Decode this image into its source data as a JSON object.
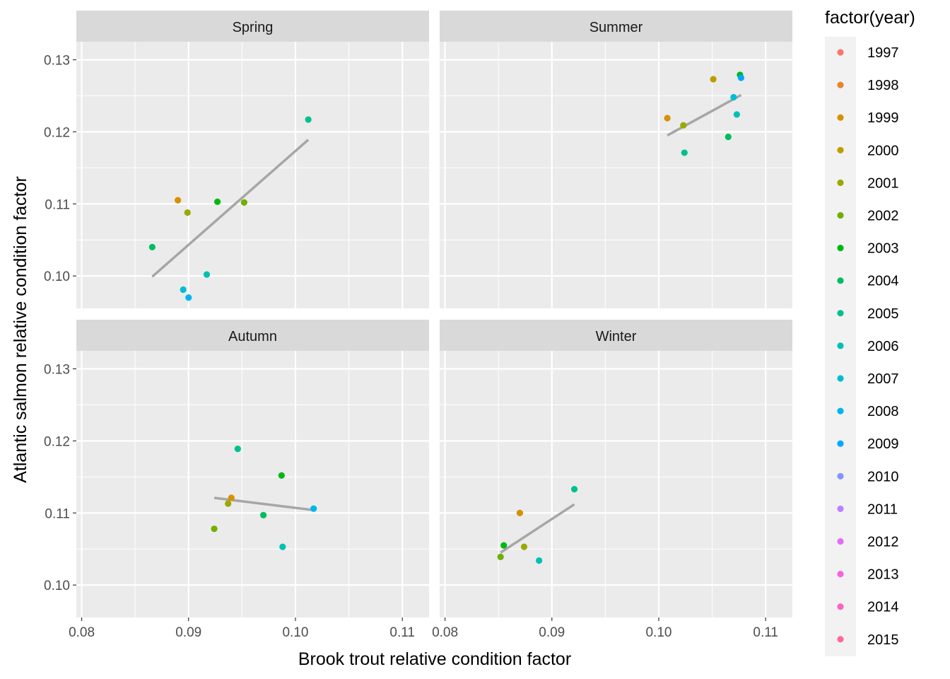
{
  "chart_data": {
    "type": "scatter",
    "xlabel": "Brook trout relative condition factor",
    "ylabel": "Atlantic salmon relative condition factor",
    "xlim": [
      0.0795,
      0.1125
    ],
    "ylim": [
      0.0955,
      0.1325
    ],
    "x_ticks": [
      0.08,
      0.09,
      0.1,
      0.11
    ],
    "x_tick_labels": [
      "0.08",
      "0.09",
      "0.10",
      "0.11"
    ],
    "y_ticks": [
      0.1,
      0.11,
      0.12,
      0.13
    ],
    "y_tick_labels": [
      "0.10",
      "0.11",
      "0.12",
      "0.13"
    ],
    "grid": true,
    "legend": {
      "title": "factor(year)",
      "position": "right",
      "entries": [
        {
          "label": "1997",
          "color": "#F8766D"
        },
        {
          "label": "1998",
          "color": "#E9842C"
        },
        {
          "label": "1999",
          "color": "#D69100"
        },
        {
          "label": "2000",
          "color": "#BC9D00"
        },
        {
          "label": "2001",
          "color": "#9CA700"
        },
        {
          "label": "2002",
          "color": "#6FB000"
        },
        {
          "label": "2003",
          "color": "#00B813"
        },
        {
          "label": "2004",
          "color": "#00BD61"
        },
        {
          "label": "2005",
          "color": "#00C08E"
        },
        {
          "label": "2006",
          "color": "#00C0B4"
        },
        {
          "label": "2007",
          "color": "#00BDD4"
        },
        {
          "label": "2008",
          "color": "#00B5EE"
        },
        {
          "label": "2009",
          "color": "#00A7FF"
        },
        {
          "label": "2010",
          "color": "#7F96FF"
        },
        {
          "label": "2011",
          "color": "#BC81FF"
        },
        {
          "label": "2012",
          "color": "#E26EF7"
        },
        {
          "label": "2013",
          "color": "#F863DF"
        },
        {
          "label": "2014",
          "color": "#FF62BF"
        },
        {
          "label": "2015",
          "color": "#FF6A9A"
        }
      ]
    },
    "panels": [
      {
        "label": "Spring",
        "points": [
          {
            "x": 0.0866,
            "y": 0.104,
            "year": "2004"
          },
          {
            "x": 0.089,
            "y": 0.1105,
            "year": "1999"
          },
          {
            "x": 0.0899,
            "y": 0.1088,
            "year": "2001"
          },
          {
            "x": 0.0927,
            "y": 0.1103,
            "year": "2003"
          },
          {
            "x": 0.0952,
            "y": 0.1102,
            "year": "2002"
          },
          {
            "x": 0.0895,
            "y": 0.0981,
            "year": "2007"
          },
          {
            "x": 0.09,
            "y": 0.097,
            "year": "2008"
          },
          {
            "x": 0.0917,
            "y": 0.1002,
            "year": "2006"
          },
          {
            "x": 0.1012,
            "y": 0.1217,
            "year": "2005"
          }
        ],
        "fit": {
          "x": [
            0.0866,
            0.1012
          ],
          "y": [
            0.0999,
            0.1189
          ]
        }
      },
      {
        "label": "Summer",
        "points": [
          {
            "x": 0.1008,
            "y": 0.1219,
            "year": "1999"
          },
          {
            "x": 0.1023,
            "y": 0.1209,
            "year": "2001"
          },
          {
            "x": 0.1024,
            "y": 0.1171,
            "year": "2005"
          },
          {
            "x": 0.1051,
            "y": 0.1273,
            "year": "2000"
          },
          {
            "x": 0.1065,
            "y": 0.1193,
            "year": "2004"
          },
          {
            "x": 0.107,
            "y": 0.1248,
            "year": "2007"
          },
          {
            "x": 0.1073,
            "y": 0.1224,
            "year": "2006"
          },
          {
            "x": 0.1076,
            "y": 0.1279,
            "year": "2003"
          },
          {
            "x": 0.1077,
            "y": 0.1275,
            "year": "2009"
          }
        ],
        "fit": {
          "x": [
            0.1008,
            0.1077
          ],
          "y": [
            0.1195,
            0.1251
          ]
        }
      },
      {
        "label": "Autumn",
        "points": [
          {
            "x": 0.0924,
            "y": 0.1078,
            "year": "2002"
          },
          {
            "x": 0.0937,
            "y": 0.1113,
            "year": "2001"
          },
          {
            "x": 0.094,
            "y": 0.1121,
            "year": "1999"
          },
          {
            "x": 0.0946,
            "y": 0.1189,
            "year": "2005"
          },
          {
            "x": 0.097,
            "y": 0.1097,
            "year": "2004"
          },
          {
            "x": 0.0987,
            "y": 0.1152,
            "year": "2003"
          },
          {
            "x": 0.0988,
            "y": 0.1053,
            "year": "2006"
          },
          {
            "x": 0.1017,
            "y": 0.1106,
            "year": "2008"
          }
        ],
        "fit": {
          "x": [
            0.0924,
            0.1017
          ],
          "y": [
            0.1121,
            0.1104
          ]
        }
      },
      {
        "label": "Winter",
        "points": [
          {
            "x": 0.0852,
            "y": 0.1039,
            "year": "2002"
          },
          {
            "x": 0.0855,
            "y": 0.1055,
            "year": "2003"
          },
          {
            "x": 0.087,
            "y": 0.11,
            "year": "1999"
          },
          {
            "x": 0.0874,
            "y": 0.1053,
            "year": "2001"
          },
          {
            "x": 0.0888,
            "y": 0.1034,
            "year": "2006"
          },
          {
            "x": 0.0921,
            "y": 0.1133,
            "year": "2005"
          }
        ],
        "fit": {
          "x": [
            0.0852,
            0.0921
          ],
          "y": [
            0.1045,
            0.1112
          ]
        }
      }
    ]
  }
}
